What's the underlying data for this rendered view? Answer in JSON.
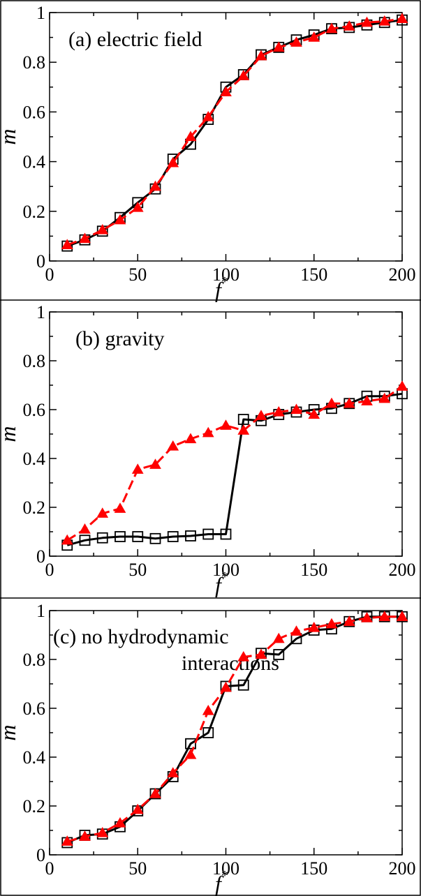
{
  "chart_data": [
    {
      "type": "line",
      "annotation": [
        "(a)  electric field"
      ],
      "xlabel": "f",
      "xlabel_superscript": "*",
      "ylabel": "m",
      "xlim": [
        0,
        200
      ],
      "ylim": [
        0,
        1
      ],
      "xticks": [
        0,
        50,
        100,
        150,
        200
      ],
      "yticks": [
        0,
        0.2,
        0.4,
        0.6,
        0.8,
        1
      ],
      "ytick_labels": [
        "0",
        "0.2",
        "0.4",
        "0.6",
        "0.8",
        "1"
      ],
      "grid": false,
      "series": [
        {
          "style": "solid-black-open-squares",
          "color": "#000000",
          "x": [
            10,
            20,
            30,
            40,
            50,
            60,
            70,
            80,
            90,
            100,
            110,
            120,
            130,
            140,
            150,
            160,
            170,
            180,
            190,
            200
          ],
          "y": [
            0.06,
            0.085,
            0.12,
            0.175,
            0.235,
            0.29,
            0.41,
            0.47,
            0.57,
            0.7,
            0.75,
            0.83,
            0.86,
            0.89,
            0.91,
            0.935,
            0.94,
            0.95,
            0.96,
            0.97
          ]
        },
        {
          "style": "dashed-red-filled-triangles",
          "color": "#ff0000",
          "x": [
            10,
            20,
            30,
            40,
            50,
            60,
            70,
            80,
            90,
            100,
            110,
            120,
            130,
            140,
            150,
            160,
            170,
            180,
            190,
            200
          ],
          "y": [
            0.065,
            0.09,
            0.125,
            0.165,
            0.215,
            0.3,
            0.395,
            0.5,
            0.58,
            0.68,
            0.745,
            0.825,
            0.86,
            0.88,
            0.9,
            0.935,
            0.945,
            0.96,
            0.965,
            0.975
          ]
        }
      ]
    },
    {
      "type": "line",
      "annotation": [
        "(b)  gravity"
      ],
      "xlabel": "f",
      "xlabel_superscript": "*",
      "ylabel": "m",
      "xlim": [
        0,
        200
      ],
      "ylim": [
        0,
        1
      ],
      "xticks": [
        0,
        50,
        100,
        150,
        200
      ],
      "yticks": [
        0,
        0.2,
        0.4,
        0.6,
        0.8,
        1
      ],
      "ytick_labels": [
        "0",
        "0.2",
        "0.4",
        "0.6",
        "0.8",
        "1"
      ],
      "grid": false,
      "series": [
        {
          "style": "solid-black-open-squares",
          "color": "#000000",
          "x": [
            10,
            20,
            30,
            40,
            50,
            60,
            70,
            80,
            90,
            100,
            110,
            120,
            130,
            140,
            150,
            160,
            170,
            180,
            190,
            200
          ],
          "y": [
            0.045,
            0.065,
            0.075,
            0.08,
            0.08,
            0.072,
            0.08,
            0.083,
            0.09,
            0.09,
            0.56,
            0.555,
            0.58,
            0.59,
            0.6,
            0.605,
            0.625,
            0.655,
            0.655,
            0.665
          ]
        },
        {
          "style": "dashed-red-filled-triangles",
          "color": "#ff0000",
          "x": [
            10,
            20,
            30,
            40,
            50,
            60,
            70,
            80,
            90,
            100,
            110,
            120,
            130,
            140,
            150,
            160,
            170,
            180,
            190,
            200
          ],
          "y": [
            0.065,
            0.11,
            0.175,
            0.195,
            0.355,
            0.375,
            0.45,
            0.48,
            0.505,
            0.535,
            0.515,
            0.575,
            0.59,
            0.6,
            0.58,
            0.625,
            0.625,
            0.635,
            0.645,
            0.695
          ]
        }
      ]
    },
    {
      "type": "line",
      "annotation": [
        "(c)  no hydrodynamic",
        "interactions"
      ],
      "xlabel": "f",
      "xlabel_superscript": "*",
      "ylabel": "m",
      "xlim": [
        0,
        200
      ],
      "ylim": [
        0,
        1
      ],
      "xticks": [
        0,
        50,
        100,
        150,
        200
      ],
      "yticks": [
        0,
        0.2,
        0.4,
        0.6,
        0.8,
        1
      ],
      "ytick_labels": [
        "0",
        "0.2",
        "0.4",
        "0.6",
        "0.8",
        "1"
      ],
      "grid": false,
      "series": [
        {
          "style": "solid-black-open-squares",
          "color": "#000000",
          "x": [
            10,
            20,
            30,
            40,
            50,
            60,
            70,
            80,
            90,
            100,
            110,
            120,
            130,
            140,
            150,
            160,
            170,
            180,
            190,
            200
          ],
          "y": [
            0.05,
            0.08,
            0.085,
            0.115,
            0.18,
            0.25,
            0.32,
            0.455,
            0.5,
            0.69,
            0.695,
            0.825,
            0.82,
            0.885,
            0.92,
            0.925,
            0.955,
            0.975,
            0.975,
            0.975
          ]
        },
        {
          "style": "dashed-red-filled-triangles",
          "color": "#ff0000",
          "x": [
            10,
            20,
            30,
            40,
            50,
            60,
            70,
            80,
            90,
            100,
            110,
            120,
            130,
            140,
            150,
            160,
            170,
            180,
            190,
            200
          ],
          "y": [
            0.055,
            0.075,
            0.09,
            0.13,
            0.185,
            0.25,
            0.335,
            0.41,
            0.59,
            0.685,
            0.81,
            0.82,
            0.885,
            0.915,
            0.93,
            0.945,
            0.955,
            0.97,
            0.975,
            0.975
          ]
        }
      ]
    }
  ]
}
